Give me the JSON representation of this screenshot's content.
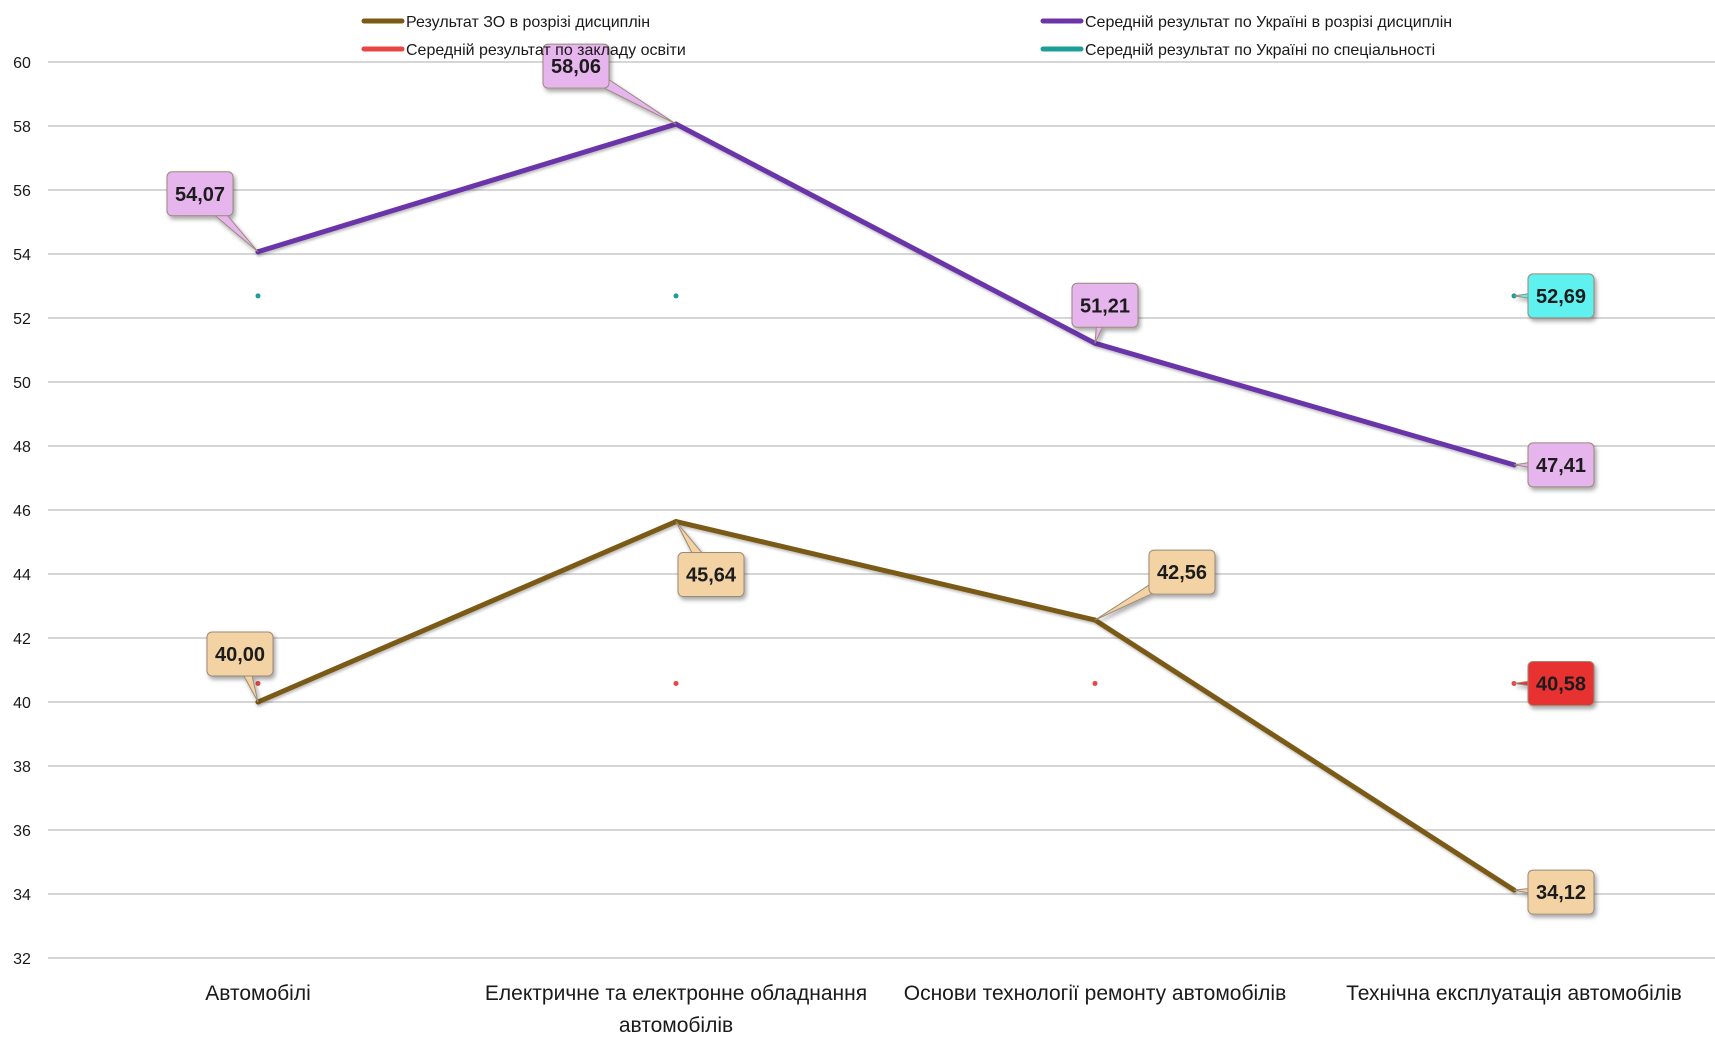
{
  "chart_data": {
    "type": "line",
    "categories": [
      [
        "Автомобілі"
      ],
      [
        "Електричне та електронне обладнання",
        "автомобілів"
      ],
      [
        "Основи технології ремонту автомобілів"
      ],
      [
        "Технічна експлуатація автомобілів"
      ]
    ],
    "ylim": [
      32,
      60
    ],
    "yticks": [
      32,
      34,
      36,
      38,
      40,
      42,
      44,
      46,
      48,
      50,
      52,
      54,
      56,
      58,
      60
    ],
    "grid": true,
    "legend_position": "top",
    "series": [
      {
        "name": "Результат ЗО в розрізі дисциплін",
        "color": "#7a5a14",
        "values": [
          40.0,
          45.64,
          42.56,
          34.12
        ],
        "labels": [
          "40,00",
          "45,64",
          "42,56",
          "34,12"
        ],
        "label_fill": "#f3d3a3"
      },
      {
        "name": "Середній результат по Україні в розрізі дисциплін",
        "color": "#6b35a8",
        "values": [
          54.07,
          58.06,
          51.21,
          47.41
        ],
        "labels": [
          "54,07",
          "58,06",
          "51,21",
          "47,41"
        ],
        "label_fill": "#e6b5ee"
      },
      {
        "name": "Середній результат по закладу освіти",
        "color": "#e84545",
        "values": [
          40.58,
          40.58,
          40.58,
          40.58
        ],
        "labels": [
          null,
          null,
          null,
          "40,58"
        ],
        "label_fill": "#e83232"
      },
      {
        "name": "Середній результат по Україні по спеціальності",
        "color": "#1d9e9a",
        "values": [
          52.69,
          52.69,
          52.69,
          52.69
        ],
        "labels": [
          null,
          null,
          null,
          "52,69"
        ],
        "label_fill": "#5ef0f0"
      }
    ]
  }
}
